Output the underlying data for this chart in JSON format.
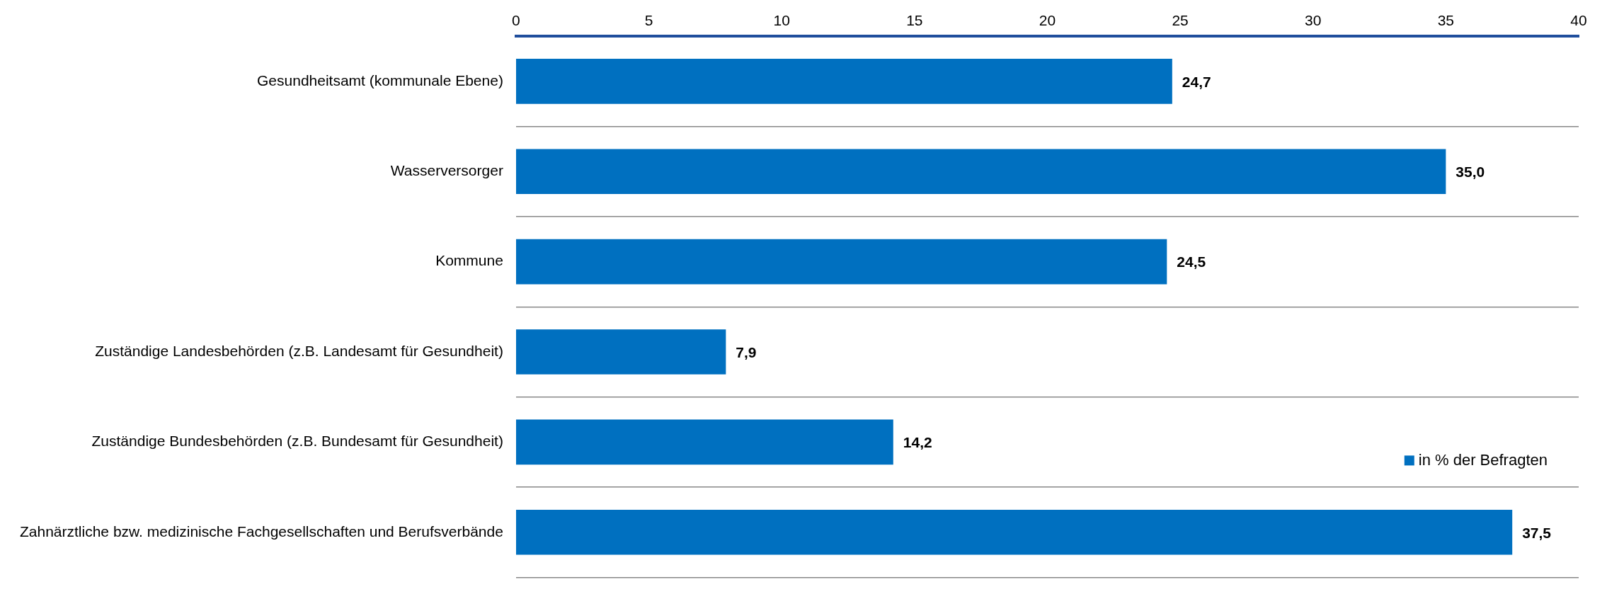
{
  "chart_data": {
    "type": "bar",
    "orientation": "horizontal",
    "categories": [
      "Gesundheitsamt (kommunale Ebene)",
      "Wasserversorger",
      "Kommune",
      "Zuständige Landesbehörden (z.B. Landesamt für Gesundheit)",
      "Zuständige Bundesbehörden (z.B. Bundesamt für Gesundheit)",
      "Zahnärztliche bzw. medizinische Fachgesellschaften und Berufsverbände"
    ],
    "series": [
      {
        "name": "in % der Befragten",
        "color": "#0070c0",
        "values": [
          24.7,
          35.0,
          24.5,
          7.9,
          14.2,
          37.5
        ],
        "value_labels": [
          "24,7",
          "35,0",
          "24,5",
          "7,9",
          "14,2",
          "37,5"
        ]
      }
    ],
    "xlim": [
      0,
      40
    ],
    "xticks": [
      0,
      5,
      10,
      15,
      20,
      25,
      30,
      35,
      40
    ],
    "grid": "y",
    "legend": "bottom right"
  }
}
